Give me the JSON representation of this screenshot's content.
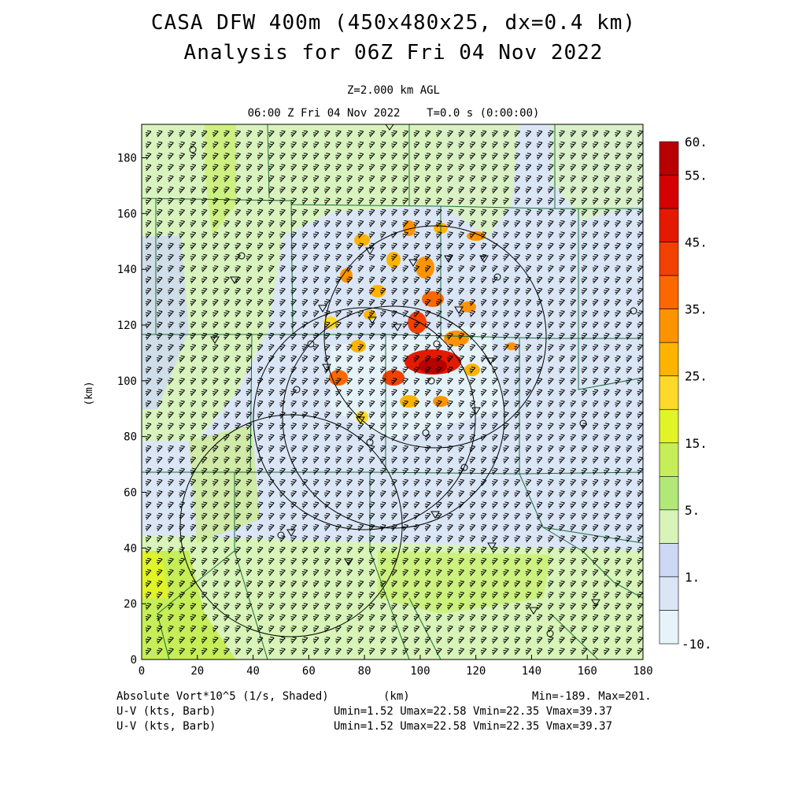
{
  "title": {
    "line1": "CASA DFW 400m (450x480x25, dx=0.4 km)",
    "line2": "Analysis for 06Z Fri 04 Nov 2022"
  },
  "subtitle": {
    "level": "Z=2.000 km AGL",
    "time": "06:00 Z Fri 04 Nov 2022    T=0.0 s (0:00:00)"
  },
  "axes": {
    "x_label": "(km)",
    "y_label": "(km)",
    "x_ticks": [
      "0",
      "20",
      "40",
      "60",
      "80",
      "100",
      "120",
      "140",
      "160",
      "180"
    ],
    "y_ticks": [
      "0",
      "20",
      "40",
      "60",
      "80",
      "100",
      "120",
      "140",
      "160",
      "180"
    ],
    "x_range": [
      0,
      180
    ],
    "y_range": [
      0,
      192
    ]
  },
  "colorbar": {
    "labels": [
      "60.",
      "55.",
      "45.",
      "35.",
      "25.",
      "15.",
      "5.",
      "1.",
      "-10."
    ],
    "colors": [
      "#b80000",
      "#d50000",
      "#e41a00",
      "#f24000",
      "#fc6800",
      "#fd9300",
      "#fcb400",
      "#fdd92a",
      "#e0f428",
      "#c6ee58",
      "#b2e878",
      "#d8f4b8",
      "#ccd8f4",
      "#dae6f6",
      "#e6f4fa"
    ]
  },
  "footer": {
    "field1": "Absolute Vort*10^5 (1/s, Shaded)",
    "xunit": "(km)",
    "minmax": "Min=-189. Max=201.",
    "field2": "U-V (kts, Barb)",
    "stats2": "Umin=1.52 Umax=22.58 Vmin=22.35 Vmax=39.37",
    "field3": "U-V (kts, Barb)",
    "stats3": "Umin=1.52 Umax=22.58 Vmin=22.35 Vmax=39.37"
  }
}
